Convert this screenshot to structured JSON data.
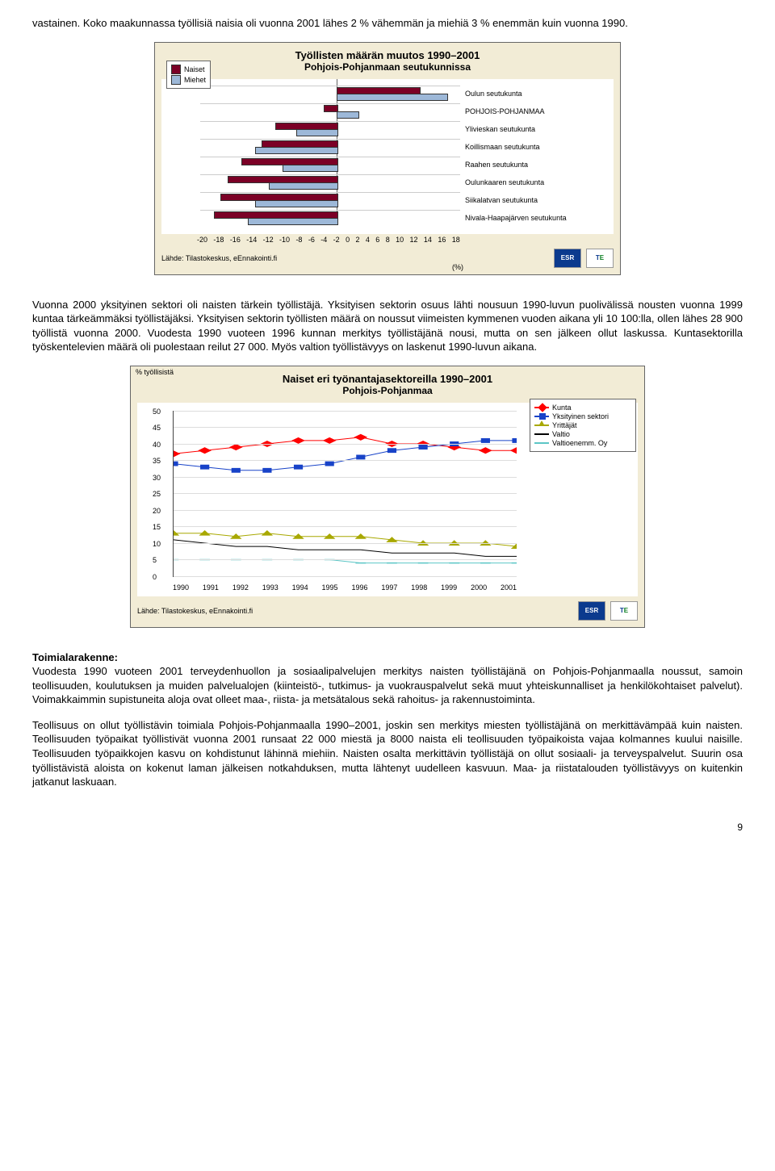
{
  "para1": "vastainen. Koko maakunnassa työllisiä naisia oli vuonna 2001 lähes 2 % vähemmän ja miehiä 3 % enemmän kuin vuonna 1990.",
  "chart1": {
    "type": "bar",
    "title_line1": "Työllisten määrän muutos 1990–2001",
    "title_line2": "Pohjois-Pohjanmaan seutukunnissa",
    "background_color": "#f2ecd6",
    "plot_bg": "#ffffff",
    "categories": [
      "Oulun seutukunta",
      "POHJOIS-POHJANMAA",
      "Ylivieskan seutukunta",
      "Koillismaan seutukunta",
      "Raahen seutukunta",
      "Oulunkaaren seutukunta",
      "Siikalatvan seutukunta",
      "Nivala-Haapajärven seutukunta"
    ],
    "series": [
      {
        "name": "Naiset",
        "color": "#7b0026",
        "values": [
          12,
          -2,
          -9,
          -11,
          -14,
          -16,
          -17,
          -18
        ]
      },
      {
        "name": "Miehet",
        "color": "#9db8d8",
        "values": [
          16,
          3,
          -6,
          -12,
          -8,
          -10,
          -12,
          -13
        ]
      }
    ],
    "xlim": [
      -20,
      18
    ],
    "xtick_step": 2,
    "xticks": [
      -20,
      -18,
      -16,
      -14,
      -12,
      -10,
      -8,
      -6,
      -4,
      -2,
      0,
      2,
      4,
      6,
      8,
      10,
      12,
      14,
      16,
      18
    ],
    "unit": "(%)",
    "source_text": "Lähde: Tilastokeskus, eEnnakointi.fi",
    "legend_labels": [
      "Naiset",
      "Miehet"
    ]
  },
  "para2": "Vuonna 2000 yksityinen sektori oli naisten tärkein työllistäjä. Yksityisen sektorin osuus lähti nousuun 1990-luvun puolivälissä nousten vuonna 1999 kuntaa tärkeämmäksi työllistäjäksi. Yksityisen sektorin työllisten määrä on noussut viimeisten kymmenen vuoden aikana yli 10 100:lla, ollen lähes 28 900 työllistä vuonna 2000. Vuodesta 1990 vuoteen 1996 kunnan merkitys työllistäjänä nousi, mutta on sen jälkeen ollut laskussa. Kuntasektorilla työskentelevien määrä oli puolestaan reilut 27 000. Myös valtion työllistävyys on laskenut 1990-luvun aikana.",
  "chart2": {
    "type": "line",
    "title_line1": "Naiset eri työnantajasektoreilla 1990–2001",
    "title_line2": "Pohjois-Pohjanmaa",
    "background_color": "#f2ecd6",
    "plot_bg": "#ffffff",
    "yaxis_title": "% työllisistä",
    "ylim": [
      0,
      50
    ],
    "ytick_step": 5,
    "yticks": [
      0,
      5,
      10,
      15,
      20,
      25,
      30,
      35,
      40,
      45,
      50
    ],
    "x_labels": [
      "1990",
      "1991",
      "1992",
      "1993",
      "1994",
      "1995",
      "1996",
      "1997",
      "1998",
      "1999",
      "2000",
      "2001"
    ],
    "grid_color": "#dddddd",
    "series": [
      {
        "name": "Kunta",
        "color": "#ff0000",
        "marker": "diamond",
        "values": [
          37,
          38,
          39,
          40,
          41,
          41,
          42,
          40,
          40,
          39,
          38,
          38
        ]
      },
      {
        "name": "Yksityinen sektori",
        "color": "#1843c8",
        "marker": "square",
        "values": [
          34,
          33,
          32,
          32,
          33,
          34,
          36,
          38,
          39,
          40,
          41,
          41
        ]
      },
      {
        "name": "Yrittäjät",
        "color": "#a8a800",
        "marker": "triangle",
        "values": [
          13,
          13,
          12,
          13,
          12,
          12,
          12,
          11,
          10,
          10,
          10,
          9
        ]
      },
      {
        "name": "Valtio",
        "color": "#000000",
        "marker": "none",
        "values": [
          11,
          10,
          9,
          9,
          8,
          8,
          8,
          7,
          7,
          7,
          6,
          6
        ]
      },
      {
        "name": "Valtioenemm. Oy",
        "color": "#5cc6c6",
        "marker": "dash",
        "values": [
          5,
          5,
          5,
          5,
          5,
          5,
          4,
          4,
          4,
          4,
          4,
          4
        ]
      }
    ],
    "source_text": "Lähde: Tilastokeskus, eEnnakointi.fi"
  },
  "section_head": "Toimialarakenne:",
  "para3": "Vuodesta 1990 vuoteen 2001 terveydenhuollon ja sosiaalipalvelujen merkitys naisten työllistäjänä on Pohjois-Pohjanmaalla noussut, samoin teollisuuden, koulutuksen ja muiden palvelualojen (kiinteistö-, tutkimus- ja vuokrauspalvelut sekä muut yhteiskunnalliset ja henkilökohtaiset palvelut). Voimakkaimmin supistuneita aloja ovat olleet maa-, riista- ja metsätalous sekä rahoitus- ja rakennustoiminta.",
  "para4": "Teollisuus on ollut työllistävin toimiala Pohjois-Pohjanmaalla 1990–2001, joskin sen merkitys miesten työllistäjänä on merkittävämpää kuin naisten. Teollisuuden työpaikat työllistivät vuonna 2001 runsaat 22 000 miestä ja 8000 naista eli teollisuuden työpaikoista vajaa kolmannes kuului naisille. Teollisuuden työpaikkojen kasvu on kohdistunut lähinnä miehiin. Naisten osalta merkittävin työllistäjä on ollut sosiaali- ja terveyspalvelut. Suurin osa työllistävistä aloista on kokenut laman jälkeisen notkahduksen, mutta lähtenyt uudelleen kasvuun. Maa- ja riistatalouden työllistävyys on kuitenkin jatkanut laskuaan.",
  "page_number": "9",
  "logo_esr": "ESR",
  "logo_te_1": "T",
  "logo_te_2": "E"
}
